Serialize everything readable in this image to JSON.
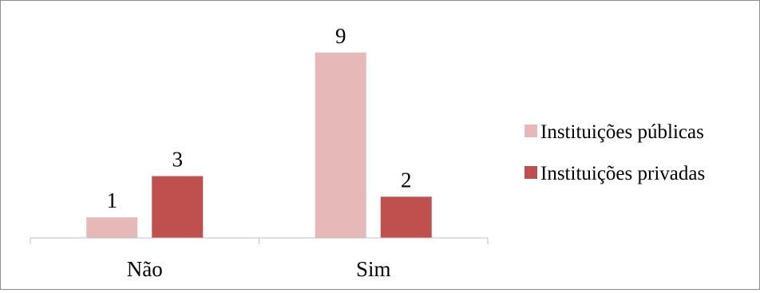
{
  "chart_data": {
    "type": "bar",
    "title": "",
    "xlabel": "",
    "ylabel": "",
    "categories": [
      "Não",
      "Sim"
    ],
    "series": [
      {
        "name": "Instituições públicas",
        "values": [
          1,
          9
        ],
        "color": "#e6b8b7"
      },
      {
        "name": "Instituições privadas",
        "values": [
          3,
          2
        ],
        "color": "#c0504d"
      }
    ],
    "ylim": [
      0,
      10
    ],
    "grid": false,
    "legend_position": "right",
    "data_labels": true
  }
}
